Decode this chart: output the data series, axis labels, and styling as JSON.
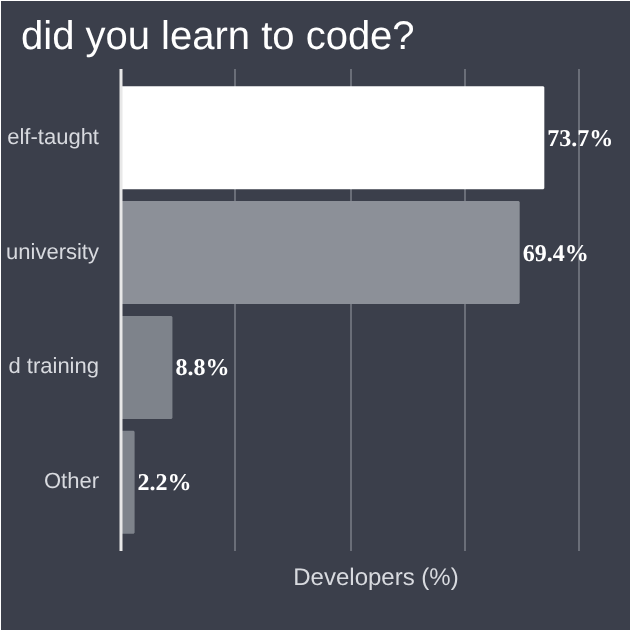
{
  "chart_data": {
    "type": "bar",
    "orientation": "horizontal",
    "title": "did you learn to code?",
    "xlabel": "Developers (%)",
    "categories": [
      "elf-taught",
      "university",
      "d training",
      "Other"
    ],
    "values": [
      73.7,
      69.4,
      8.8,
      2.2
    ],
    "value_labels": [
      "73.7%",
      "69.4%",
      "8.8%",
      "2.2%"
    ],
    "colors": [
      "#ffffff",
      "#8c9098",
      "#7e838b",
      "#7e838b"
    ],
    "xlim": [
      0,
      89
    ],
    "xticks": [
      {
        "value": 0,
        "label": null
      },
      {
        "value": 20,
        "label": null
      },
      {
        "value": 40,
        "label": null
      },
      {
        "value": 60,
        "label": null
      },
      {
        "value": 80,
        "label": null
      }
    ],
    "grid": "x"
  }
}
